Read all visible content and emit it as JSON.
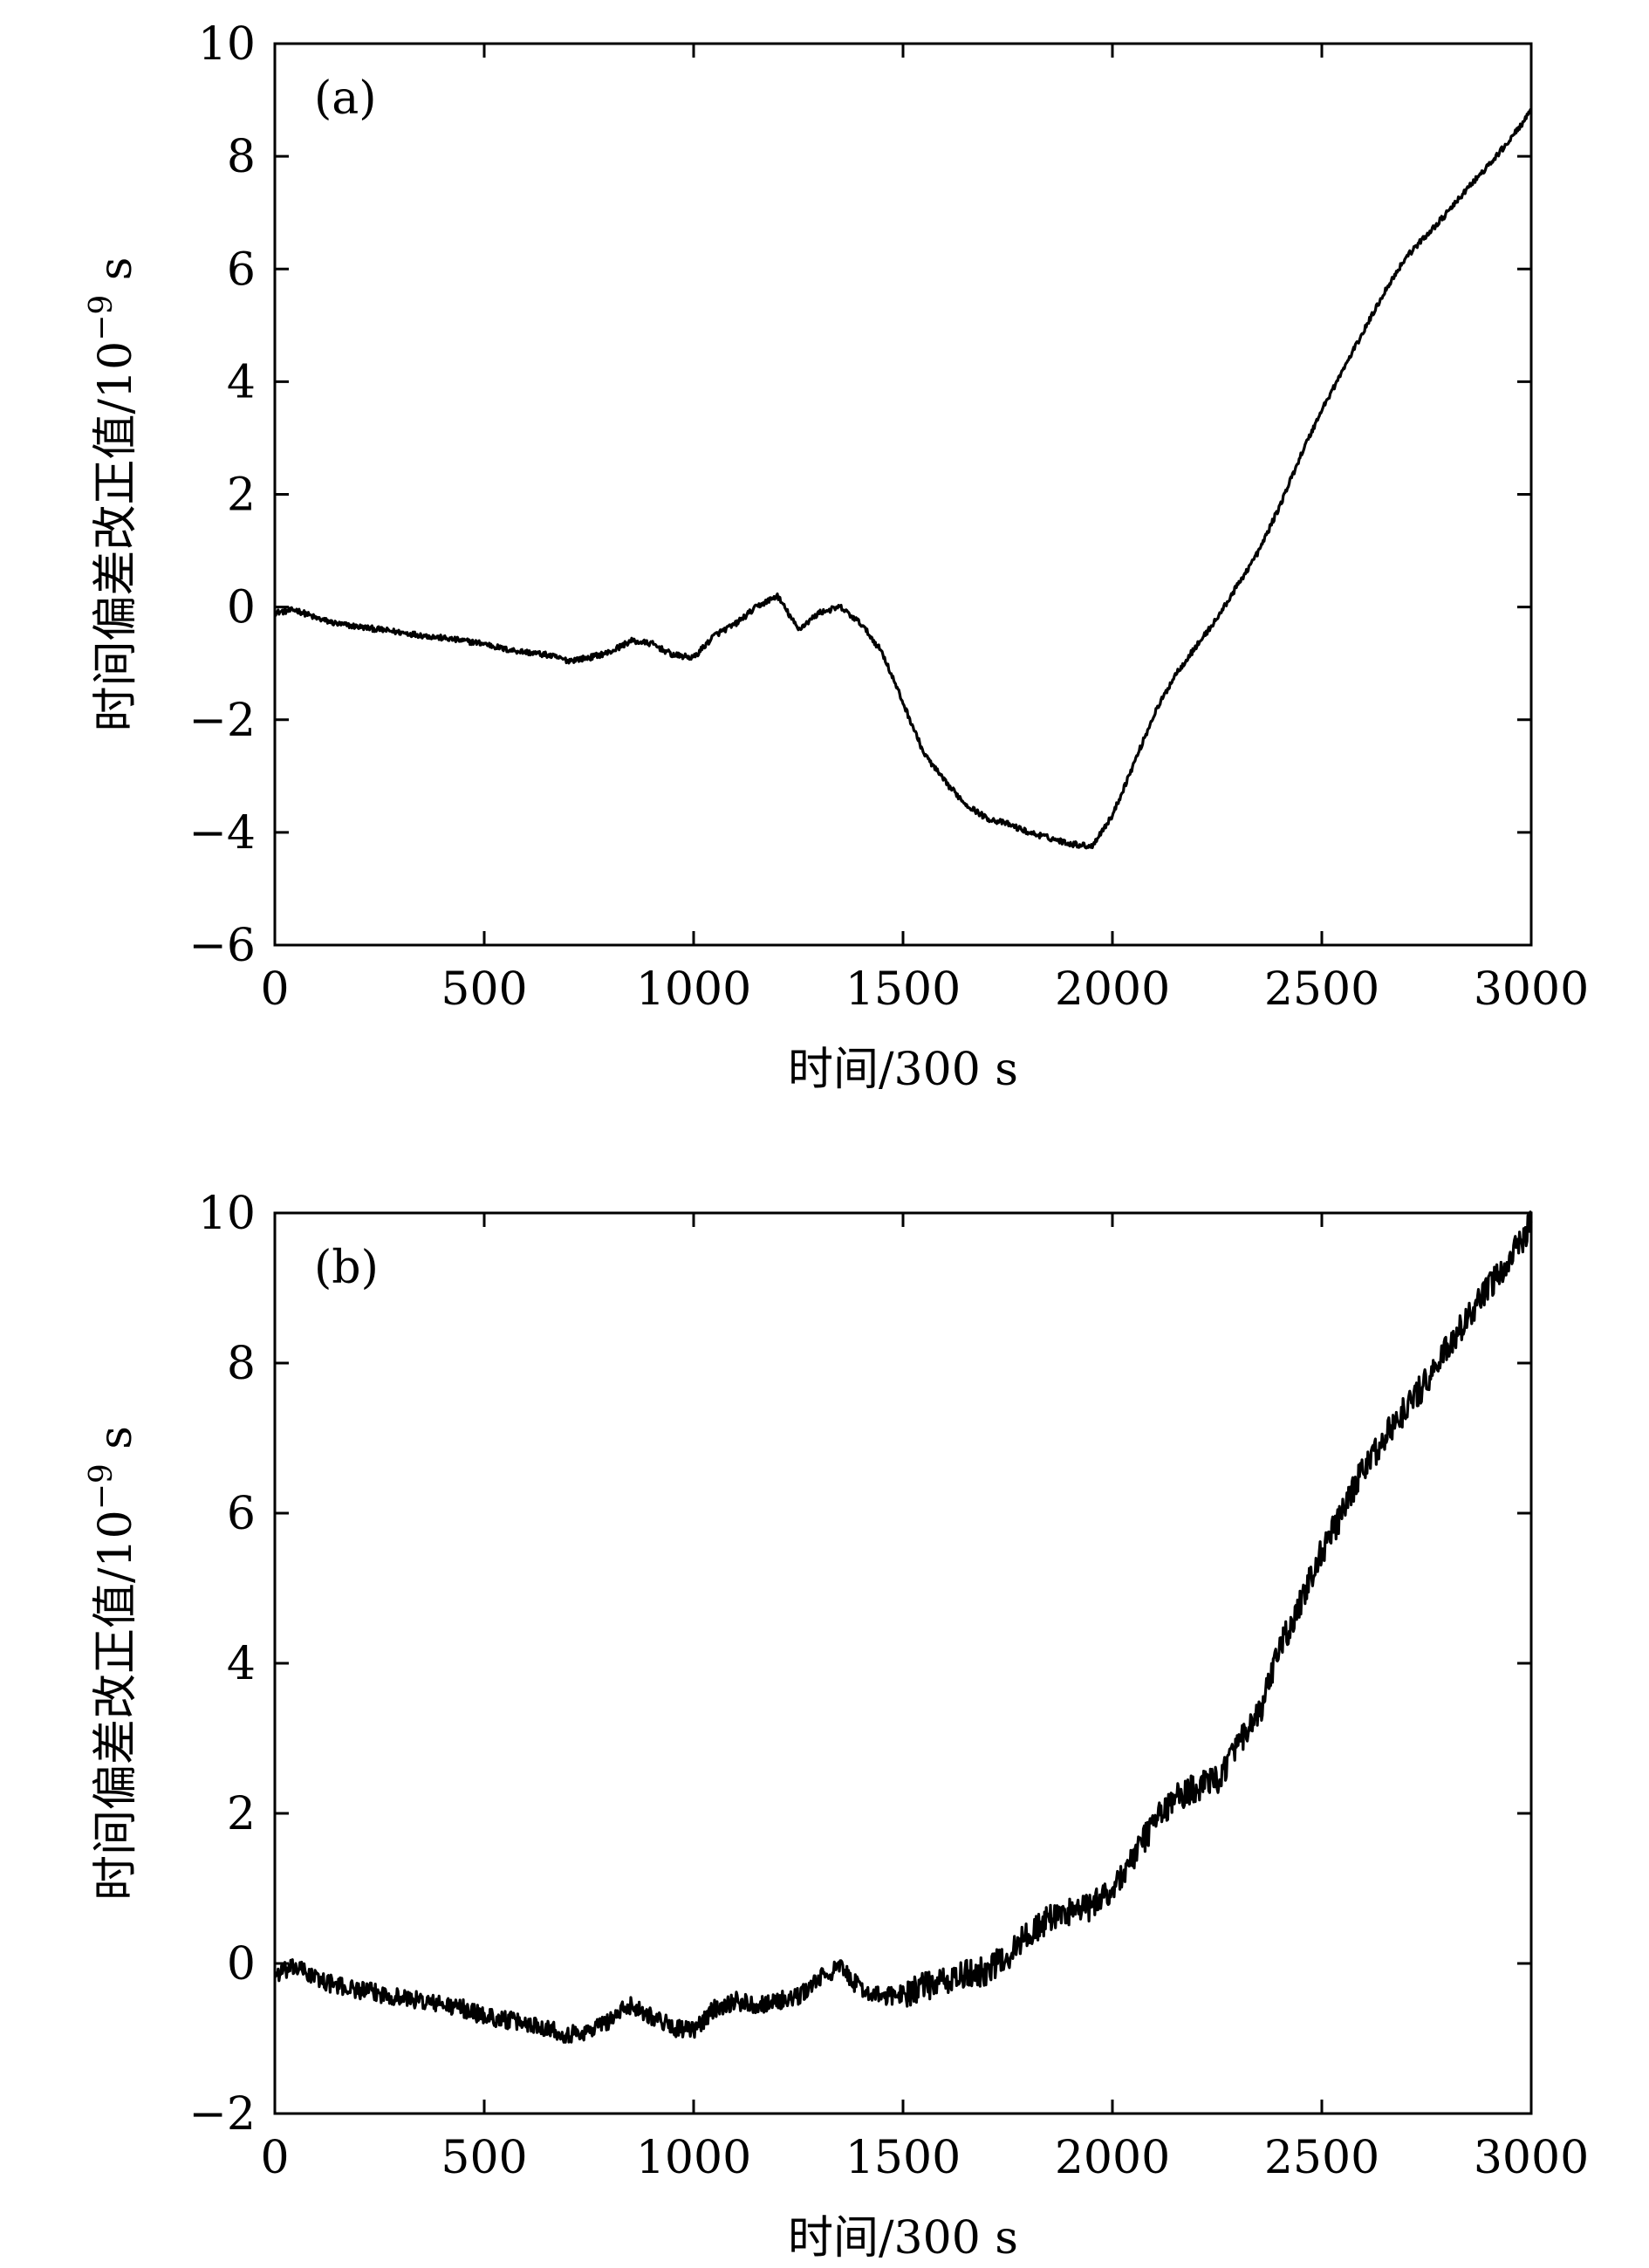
{
  "chart_data": [
    {
      "type": "line",
      "panel_label": "(a)",
      "xlabel": "时间/300 s",
      "ylabel": "时间偏差改正值/10",
      "ylabel_exp": "−9",
      "ylabel_unit": " s",
      "xlim": [
        0,
        3000
      ],
      "ylim": [
        -6,
        10
      ],
      "xticks": [
        0,
        500,
        1000,
        1500,
        2000,
        2500,
        3000
      ],
      "xtick_labels": [
        "0",
        "500",
        "1000",
        "1500",
        "2000",
        "2500",
        "3000"
      ],
      "yticks": [
        -6,
        -4,
        -2,
        0,
        2,
        4,
        6,
        8,
        10
      ],
      "ytick_labels": [
        "−6",
        "−4",
        "−2",
        "0",
        "2",
        "4",
        "6",
        "8",
        "10"
      ],
      "grid": false,
      "series": [
        {
          "x": [
            0,
            50,
            100,
            150,
            200,
            250,
            300,
            350,
            400,
            450,
            500,
            550,
            600,
            650,
            700,
            750,
            800,
            850,
            900,
            950,
            1000,
            1050,
            1100,
            1150,
            1200,
            1250,
            1300,
            1350,
            1400,
            1450,
            1500,
            1550,
            1600,
            1650,
            1700,
            1750,
            1800,
            1850,
            1900,
            1950,
            2000,
            2050,
            2100,
            2150,
            2200,
            2250,
            2300,
            2350,
            2400,
            2450,
            2500,
            2550,
            2600,
            2650,
            2700,
            2750,
            2800,
            2850,
            2900,
            2950,
            3000
          ],
          "y": [
            -0.1,
            -0.05,
            -0.2,
            -0.3,
            -0.35,
            -0.4,
            -0.45,
            -0.5,
            -0.55,
            -0.6,
            -0.65,
            -0.75,
            -0.8,
            -0.85,
            -0.95,
            -0.9,
            -0.8,
            -0.6,
            -0.65,
            -0.85,
            -0.9,
            -0.5,
            -0.3,
            0.0,
            0.2,
            -0.4,
            -0.1,
            0.0,
            -0.3,
            -0.8,
            -1.7,
            -2.6,
            -3.1,
            -3.5,
            -3.75,
            -3.85,
            -4.0,
            -4.1,
            -4.2,
            -4.25,
            -3.7,
            -2.8,
            -1.9,
            -1.2,
            -0.7,
            -0.2,
            0.4,
            1.0,
            1.8,
            2.7,
            3.5,
            4.2,
            4.9,
            5.6,
            6.2,
            6.6,
            7.0,
            7.45,
            7.85,
            8.3,
            8.8
          ]
        }
      ]
    },
    {
      "type": "line",
      "panel_label": "(b)",
      "xlabel": "时间/300 s",
      "ylabel": "时间偏差改正值/10",
      "ylabel_exp": "−9",
      "ylabel_unit": " s",
      "xlim": [
        0,
        3000
      ],
      "ylim": [
        -2,
        10
      ],
      "xticks": [
        0,
        500,
        1000,
        1500,
        2000,
        2500,
        3000
      ],
      "xtick_labels": [
        "0",
        "500",
        "1000",
        "1500",
        "2000",
        "2500",
        "3000"
      ],
      "yticks": [
        -2,
        0,
        2,
        4,
        6,
        8,
        10
      ],
      "ytick_labels": [
        "−2",
        "0",
        "2",
        "4",
        "6",
        "8",
        "10"
      ],
      "grid": false,
      "series": [
        {
          "x": [
            0,
            50,
            100,
            150,
            200,
            250,
            300,
            350,
            400,
            450,
            500,
            550,
            600,
            650,
            700,
            750,
            800,
            850,
            900,
            950,
            1000,
            1050,
            1100,
            1150,
            1200,
            1250,
            1300,
            1350,
            1400,
            1450,
            1500,
            1550,
            1600,
            1650,
            1700,
            1750,
            1800,
            1850,
            1900,
            1950,
            2000,
            2050,
            2100,
            2150,
            2200,
            2250,
            2300,
            2350,
            2400,
            2450,
            2500,
            2550,
            2600,
            2650,
            2700,
            2750,
            2800,
            2850,
            2900,
            2950,
            3000
          ],
          "y": [
            -0.15,
            -0.05,
            -0.2,
            -0.3,
            -0.35,
            -0.4,
            -0.45,
            -0.5,
            -0.55,
            -0.6,
            -0.7,
            -0.75,
            -0.8,
            -0.85,
            -0.95,
            -0.9,
            -0.75,
            -0.55,
            -0.7,
            -0.85,
            -0.9,
            -0.6,
            -0.5,
            -0.55,
            -0.5,
            -0.45,
            -0.2,
            -0.05,
            -0.35,
            -0.45,
            -0.4,
            -0.3,
            -0.25,
            -0.15,
            -0.1,
            0.1,
            0.4,
            0.6,
            0.7,
            0.75,
            1.0,
            1.4,
            1.9,
            2.2,
            2.35,
            2.45,
            2.9,
            3.3,
            4.2,
            4.8,
            5.5,
            6.0,
            6.6,
            7.0,
            7.4,
            7.75,
            8.2,
            8.6,
            9.0,
            9.4,
            9.85
          ]
        }
      ]
    }
  ]
}
